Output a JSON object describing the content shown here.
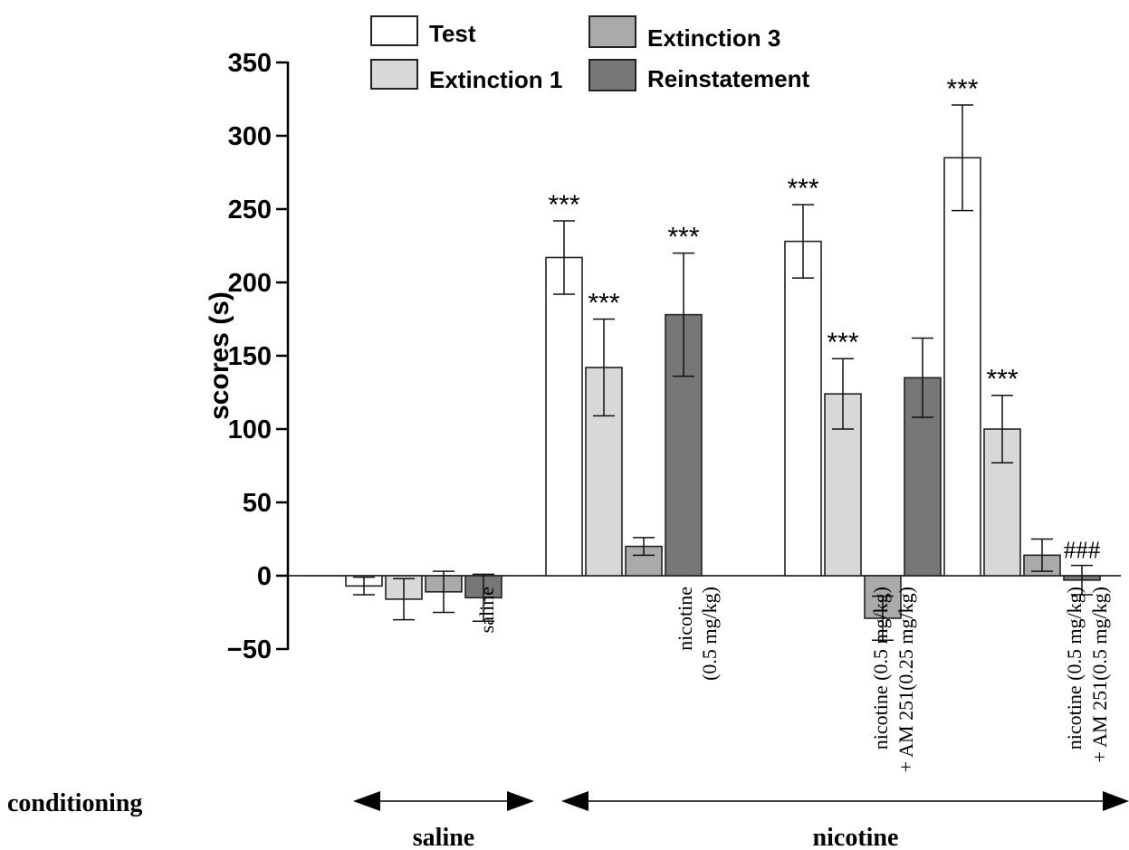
{
  "chart_data": {
    "type": "bar",
    "ylabel": "scores (s)",
    "ylim": [
      -50,
      350
    ],
    "yticks": [
      -50,
      0,
      50,
      100,
      150,
      200,
      250,
      300,
      350
    ],
    "ytick_labels": [
      "−50",
      "0",
      "50",
      "100",
      "150",
      "200",
      "250",
      "300",
      "350"
    ],
    "legend": {
      "placement": "top",
      "entries": [
        "Test",
        "Extinction 1",
        "Extinction 3",
        "Reinstatement"
      ]
    },
    "series_styles": [
      {
        "name": "Test",
        "color": "#ffffff"
      },
      {
        "name": "Extinction 1",
        "color": "#d8d8da"
      },
      {
        "name": "Extinction 3",
        "color": "#aaaaad"
      },
      {
        "name": "Reinstatement",
        "color": "#77777a"
      }
    ],
    "groups": [
      {
        "label_lines": [
          "saline"
        ],
        "values": [
          -7,
          -16,
          -11,
          -15
        ],
        "errors": [
          6,
          14,
          14,
          16
        ],
        "annotations": [
          "",
          "",
          "",
          ""
        ]
      },
      {
        "label_lines": [
          "nicotine",
          "(0.5 mg/kg)"
        ],
        "values": [
          217,
          142,
          20,
          178
        ],
        "errors": [
          25,
          33,
          6,
          42
        ],
        "annotations": [
          "***",
          "***",
          "",
          "***"
        ]
      },
      {
        "label_lines": [
          "nicotine (0.5 mg/kg)",
          "+ AM 251(0.25 mg/kg)"
        ],
        "values": [
          228,
          124,
          -29,
          135
        ],
        "errors": [
          25,
          24,
          15,
          27
        ],
        "annotations": [
          "***",
          "***",
          "",
          ""
        ]
      },
      {
        "label_lines": [
          "nicotine (0.5 mg/kg)",
          "+ AM 251(0.5 mg/kg)"
        ],
        "values": [
          285,
          100,
          14,
          -3
        ],
        "errors": [
          36,
          23,
          11,
          10
        ],
        "annotations": [
          "***",
          "***",
          "",
          "###"
        ]
      }
    ]
  },
  "conditioning": {
    "row_label": "conditioning",
    "ranges": [
      {
        "label": "saline"
      },
      {
        "label": "nicotine"
      }
    ]
  }
}
